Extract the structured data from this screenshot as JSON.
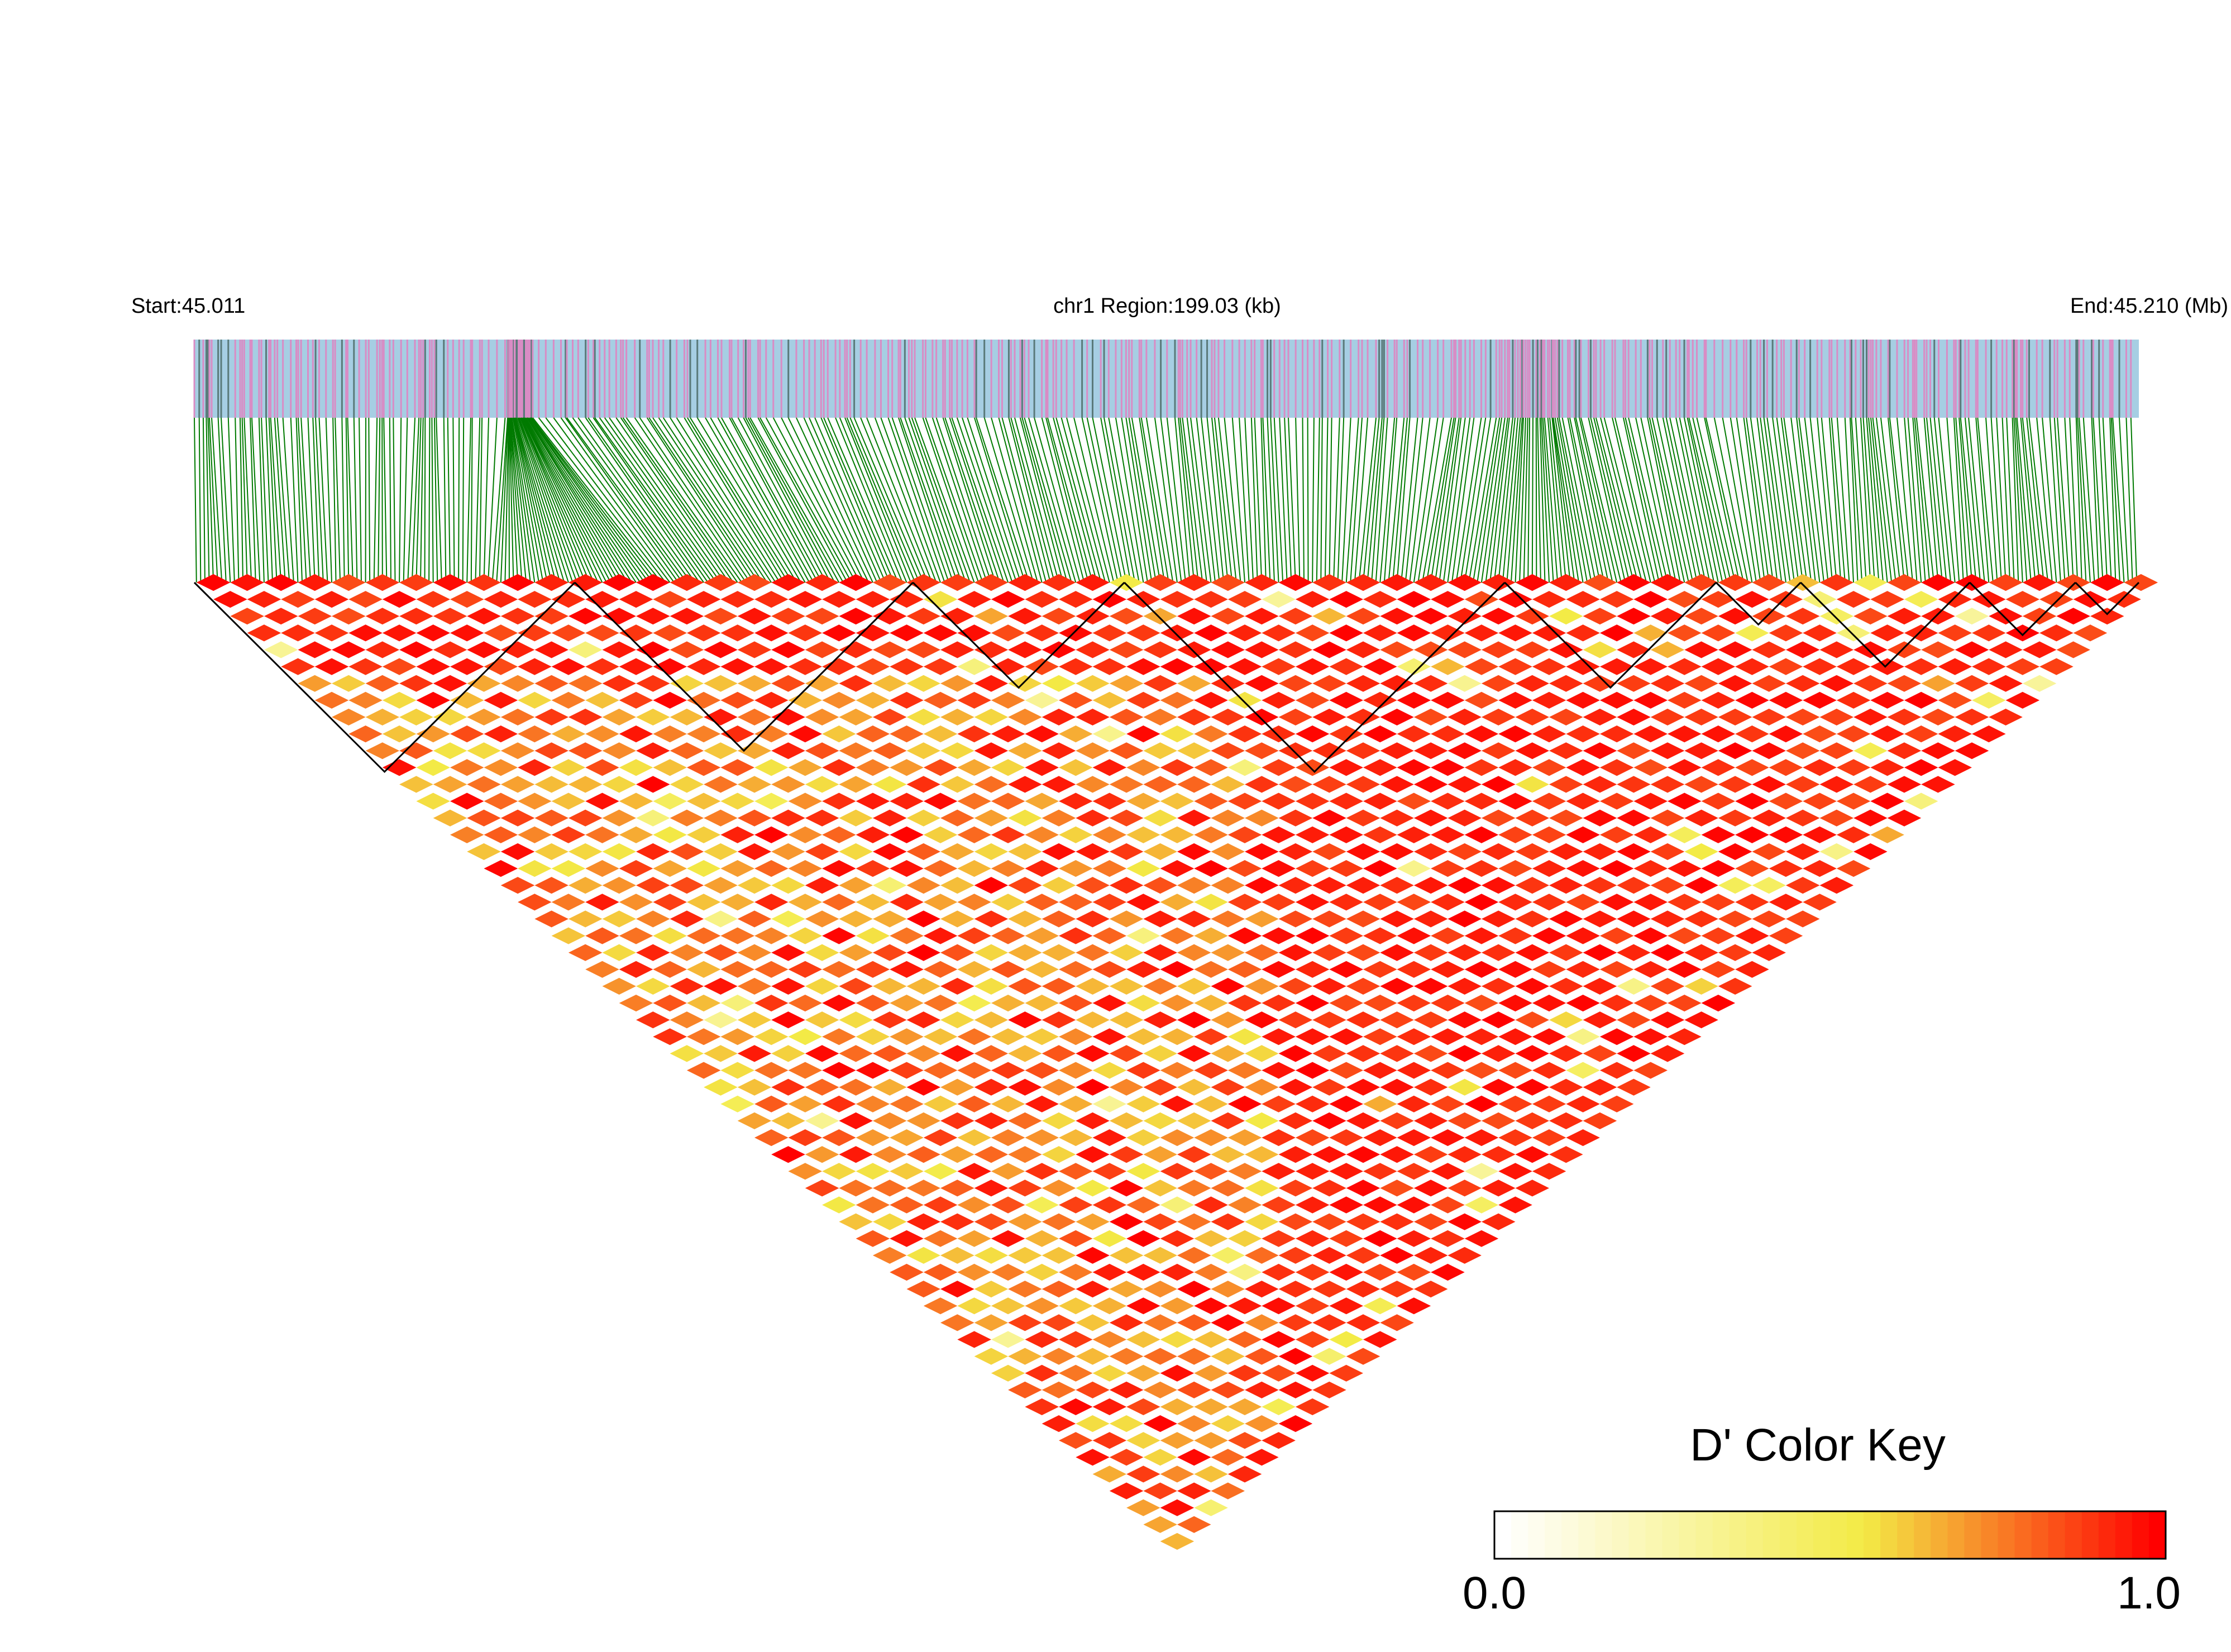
{
  "header": {
    "start_label": "Start:45.011",
    "region_label": "chr1 Region:199.03 (kb)",
    "end_label": "End:45.210 (Mb)"
  },
  "colors": {
    "snp_bar_background": "#a6cee3",
    "snp_marker_pink": "#d98cc5",
    "snp_marker_dark": "#5a7a7a",
    "connector_green": "#007a00",
    "block_outline": "#000000",
    "ld_low": "#ffffff",
    "ld_mid": "#f0e442",
    "ld_high": "#ff0000"
  },
  "chart_data": {
    "type": "heatmap",
    "plot": "LD heatmap",
    "chromosome": "chr1",
    "start_mb": 45.011,
    "end_mb": 45.21,
    "region_kb": 199.03,
    "snp_count_approx": 460,
    "metric": "D'",
    "value_range": [
      0.0,
      1.0
    ],
    "layout": "inverted triangle below SNP position track",
    "color_key": {
      "title": "D' Color Key",
      "min_label": "0.0",
      "max_label": "1.0",
      "stops": [
        "#ffffff",
        "#f3ef4c",
        "#ff0000"
      ]
    },
    "haplotype_blocks_outlined": true
  }
}
